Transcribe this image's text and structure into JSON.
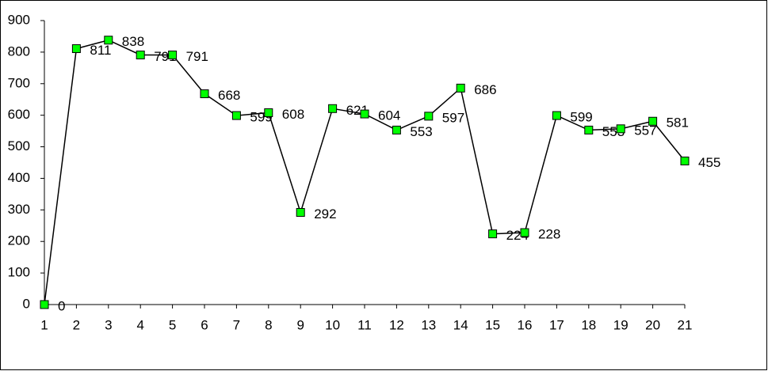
{
  "chart_data": {
    "type": "line",
    "categories": [
      1,
      2,
      3,
      4,
      5,
      6,
      7,
      8,
      9,
      10,
      11,
      12,
      13,
      14,
      15,
      16,
      17,
      18,
      19,
      20,
      21
    ],
    "values": [
      0,
      811,
      838,
      791,
      791,
      668,
      599,
      608,
      292,
      621,
      604,
      553,
      597,
      686,
      224,
      228,
      599,
      553,
      557,
      581,
      455
    ],
    "color": "#000000",
    "marker_color": "#00ff00",
    "ylim": [
      0,
      900
    ],
    "yticks": [
      0,
      100,
      200,
      300,
      400,
      500,
      600,
      700,
      800,
      900
    ],
    "grid": false,
    "data_labels": true
  }
}
